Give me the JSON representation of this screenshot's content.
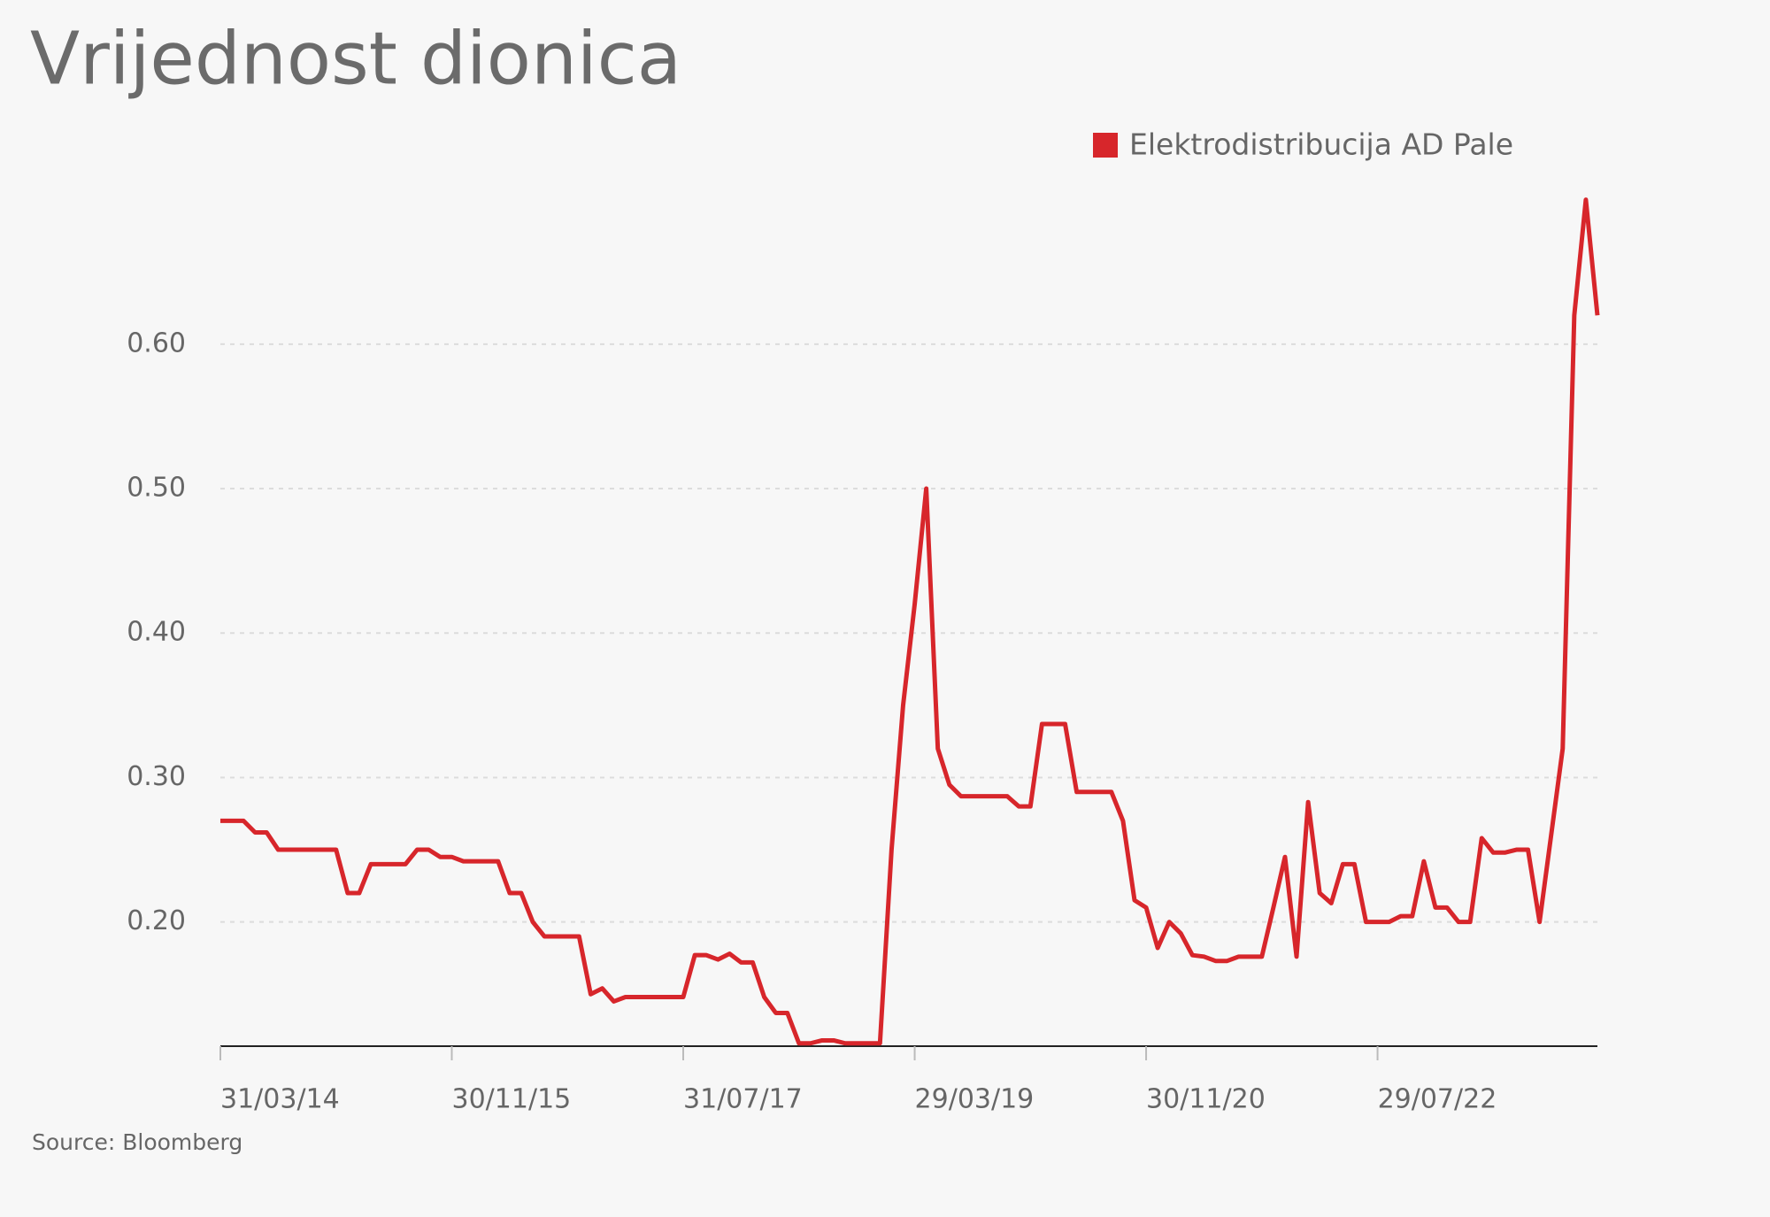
{
  "chart_data": {
    "type": "line",
    "title": "Vrijednost dionica",
    "source": "Source: Bloomberg",
    "categories": [
      "31/03/14",
      null,
      null,
      null,
      null,
      null,
      null,
      null,
      null,
      null,
      null,
      null,
      null,
      null,
      null,
      null,
      null,
      null,
      null,
      null,
      "30/11/15",
      null,
      null,
      null,
      null,
      null,
      null,
      null,
      null,
      null,
      null,
      null,
      null,
      null,
      null,
      null,
      null,
      null,
      null,
      null,
      "31/07/17",
      null,
      null,
      null,
      null,
      null,
      null,
      null,
      null,
      null,
      null,
      null,
      null,
      null,
      null,
      null,
      null,
      null,
      null,
      null,
      "29/03/19",
      null,
      null,
      null,
      null,
      null,
      null,
      null,
      null,
      null,
      null,
      null,
      null,
      null,
      null,
      null,
      null,
      null,
      null,
      null,
      "30/11/20",
      null,
      null,
      null,
      null,
      null,
      null,
      null,
      null,
      null,
      null,
      null,
      null,
      null,
      null,
      null,
      null,
      null,
      null,
      null,
      "29/07/22",
      null,
      null,
      null,
      null,
      null,
      null,
      null,
      null,
      null,
      null,
      null,
      null,
      null,
      null,
      null,
      null,
      null,
      null,
      null
    ],
    "series": [
      {
        "name": "Elektrodistribucija AD Pale",
        "color": "#d7262b",
        "values": [
          0.27,
          0.27,
          0.27,
          0.262,
          0.262,
          0.25,
          0.25,
          0.25,
          0.25,
          0.25,
          0.25,
          0.22,
          0.22,
          0.24,
          0.24,
          0.24,
          0.24,
          0.25,
          0.25,
          0.245,
          0.245,
          0.242,
          0.242,
          0.242,
          0.242,
          0.22,
          0.22,
          0.2,
          0.19,
          0.19,
          0.19,
          0.19,
          0.15,
          0.154,
          0.145,
          0.148,
          0.148,
          0.148,
          0.148,
          0.148,
          0.148,
          0.177,
          0.177,
          0.174,
          0.178,
          0.172,
          0.172,
          0.148,
          0.137,
          0.137,
          0.116,
          0.116,
          0.118,
          0.118,
          0.116,
          0.116,
          0.116,
          0.116,
          0.25,
          0.35,
          0.42,
          0.5,
          0.32,
          0.295,
          0.287,
          0.287,
          0.287,
          0.287,
          0.287,
          0.28,
          0.28,
          0.337,
          0.337,
          0.337,
          0.29,
          0.29,
          0.29,
          0.29,
          0.27,
          0.215,
          0.21,
          0.182,
          0.2,
          0.192,
          0.177,
          0.176,
          0.173,
          0.173,
          0.176,
          0.176,
          0.176,
          0.21,
          0.245,
          0.176,
          0.283,
          0.22,
          0.213,
          0.24,
          0.24,
          0.2,
          0.2,
          0.2,
          0.204,
          0.204,
          0.242,
          0.21,
          0.21,
          0.2,
          0.2,
          0.258,
          0.248,
          0.248,
          0.25,
          0.25,
          0.2,
          0.26,
          0.32,
          0.62,
          0.7,
          0.62
        ]
      }
    ],
    "ylim": [
      0.114,
      0.72
    ],
    "yticks": [
      {
        "value": 0.2,
        "label": "0.20"
      },
      {
        "value": 0.3,
        "label": "0.30"
      },
      {
        "value": 0.4,
        "label": "0.40"
      },
      {
        "value": 0.5,
        "label": "0.50"
      },
      {
        "value": 0.6,
        "label": "0.60"
      }
    ],
    "grid": true
  }
}
